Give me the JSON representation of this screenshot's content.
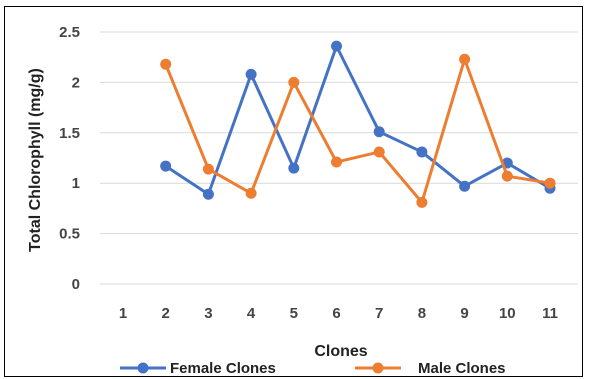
{
  "chart_data": {
    "type": "line",
    "title": "",
    "xlabel": "Clones",
    "ylabel": "Total Chlorophyll  (mg/g)",
    "categories": [
      "1",
      "2",
      "3",
      "4",
      "5",
      "6",
      "7",
      "8",
      "9",
      "10",
      "11"
    ],
    "ylim": [
      0,
      2.5
    ],
    "yticks": [
      "0",
      "0.5",
      "1",
      "1.5",
      "2",
      "2.5"
    ],
    "grid": true,
    "legend_position": "bottom",
    "series": [
      {
        "name": "Female Clones",
        "color": "#4472C4",
        "values": [
          null,
          1.17,
          0.89,
          2.08,
          1.15,
          2.36,
          1.51,
          1.31,
          0.97,
          1.2,
          0.95
        ]
      },
      {
        "name": "Male Clones",
        "color": "#ED7D31",
        "values": [
          null,
          2.18,
          1.14,
          0.9,
          2.0,
          1.21,
          1.31,
          0.81,
          2.23,
          1.07,
          1.0
        ]
      }
    ]
  }
}
